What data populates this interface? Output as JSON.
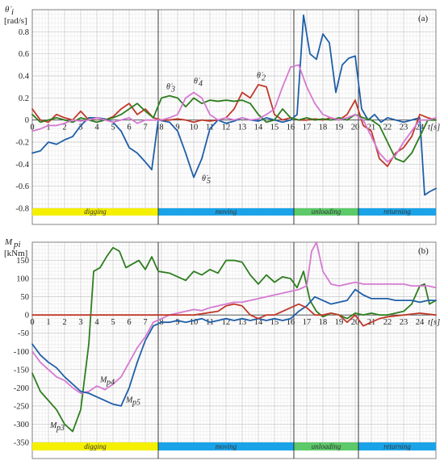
{
  "chart_data": [
    {
      "type": "line",
      "panel_label": "(a)",
      "ylabel_main": "θ̇",
      "ylabel_sub": "i",
      "ylabel_unit": "[rad/s]",
      "xlabel": "t[s]",
      "xlim": [
        0,
        25
      ],
      "ylim": [
        -0.8,
        1.0
      ],
      "x_ticks": [
        0,
        1,
        2,
        3,
        4,
        5,
        6,
        7,
        8,
        9,
        10,
        11,
        12,
        13,
        14,
        15,
        16,
        17,
        18,
        19,
        20,
        21,
        22,
        23,
        24
      ],
      "y_ticks": [
        -0.8,
        -0.6,
        -0.4,
        -0.2,
        0,
        0.2,
        0.4,
        0.6,
        0.8,
        1
      ],
      "y_tick_labels": [
        "-0.8",
        "-0.6",
        "-0.4",
        "-0.2",
        "0",
        "0.2",
        "0.4",
        "0.6",
        "0.8",
        ""
      ],
      "grid": true,
      "phases": [
        {
          "label": "digging",
          "start": 0,
          "end": 7.8,
          "color": "#f5f000"
        },
        {
          "label": "moving",
          "start": 7.8,
          "end": 16.2,
          "color": "#1aa3e8"
        },
        {
          "label": "unloading",
          "start": 16.2,
          "end": 20.2,
          "color": "#5cc96a"
        },
        {
          "label": "returning",
          "start": 20.2,
          "end": 25,
          "color": "#1aa3e8"
        }
      ],
      "annotations": [
        {
          "text": "θ̇",
          "sub": "3",
          "x": 8.3,
          "y": 0.28
        },
        {
          "text": "θ̇",
          "sub": "4",
          "x": 10.0,
          "y": 0.33
        },
        {
          "text": "θ̇",
          "sub": "2",
          "x": 13.9,
          "y": 0.38
        },
        {
          "text": "θ̇",
          "sub": "5",
          "x": 10.5,
          "y": -0.55
        }
      ],
      "series": [
        {
          "color": "#1f5fa8",
          "x": [
            0,
            0.5,
            1,
            1.5,
            2,
            2.5,
            3,
            3.5,
            4,
            4.5,
            5,
            5.5,
            6,
            6.5,
            7,
            7.4,
            7.8,
            8.5,
            9,
            9.5,
            10,
            10.5,
            11,
            11.5,
            12,
            12.5,
            13,
            13.5,
            14,
            14.5,
            15,
            15.5,
            16,
            16.4,
            16.8,
            17.2,
            17.6,
            18,
            18.4,
            18.8,
            19.2,
            19.6,
            20,
            20.4,
            20.8,
            21.2,
            21.6,
            22,
            22.5,
            23,
            23.5,
            24,
            24.3,
            24.6,
            25
          ],
          "y": [
            -0.3,
            -0.28,
            -0.2,
            -0.22,
            -0.18,
            -0.15,
            -0.05,
            0.02,
            0.02,
            0.01,
            -0.02,
            -0.1,
            -0.25,
            -0.3,
            -0.38,
            -0.45,
            0.0,
            -0.02,
            -0.1,
            -0.3,
            -0.52,
            -0.35,
            -0.08,
            0.0,
            -0.03,
            -0.01,
            0.02,
            0.0,
            -0.01,
            0.02,
            0.0,
            -0.02,
            0.0,
            0.05,
            0.95,
            0.6,
            0.55,
            0.78,
            0.7,
            0.25,
            0.5,
            0.56,
            0.58,
            0.1,
            0.0,
            0.05,
            -0.02,
            0.02,
            0.0,
            -0.02,
            0.0,
            0.02,
            -0.68,
            -0.65,
            -0.62
          ]
        },
        {
          "color": "#c0392b",
          "x": [
            0,
            0.5,
            1,
            1.5,
            2,
            2.5,
            3,
            3.5,
            4,
            4.5,
            5,
            5.5,
            6,
            6.5,
            7,
            7.5,
            8,
            8.5,
            9,
            9.5,
            10,
            10.5,
            11,
            11.5,
            12,
            12.5,
            13,
            13.5,
            14,
            14.5,
            15,
            15.5,
            16,
            16.5,
            17,
            17.5,
            18,
            18.5,
            19,
            19.5,
            20,
            20.5,
            21,
            21.5,
            22,
            22.5,
            23,
            23.5,
            24,
            24.5,
            25
          ],
          "y": [
            0.1,
            0.0,
            -0.02,
            0.05,
            0.02,
            0.0,
            0.08,
            0.0,
            0.02,
            0.0,
            0.03,
            0.1,
            0.15,
            0.05,
            0.1,
            0.02,
            0.0,
            0.0,
            0.01,
            0.0,
            -0.02,
            0.0,
            -0.01,
            0.0,
            0.02,
            0.1,
            0.25,
            0.2,
            0.32,
            0.3,
            0.05,
            0.0,
            0.02,
            0.0,
            0.0,
            0.01,
            0.0,
            0.02,
            0.0,
            0.05,
            0.18,
            -0.05,
            -0.1,
            -0.35,
            -0.42,
            -0.3,
            -0.25,
            -0.15,
            0.05,
            0.02,
            0.0
          ]
        },
        {
          "color": "#2e7d1f",
          "x": [
            0,
            0.5,
            1,
            1.5,
            2,
            2.5,
            3,
            3.5,
            4,
            4.5,
            5,
            5.5,
            6,
            6.5,
            7,
            7.5,
            8,
            8.5,
            9,
            9.5,
            10,
            10.5,
            11,
            11.5,
            12,
            12.5,
            13,
            13.5,
            14,
            14.5,
            15,
            15.5,
            16,
            16.5,
            17,
            17.5,
            18,
            18.5,
            19,
            19.5,
            20,
            20.5,
            21,
            21.5,
            22,
            22.5,
            23,
            23.5,
            24,
            24.5,
            25
          ],
          "y": [
            0.05,
            -0.02,
            0.0,
            0.02,
            0.0,
            -0.02,
            0.02,
            0.0,
            -0.02,
            0.0,
            0.02,
            0.05,
            0.1,
            0.15,
            0.08,
            0.02,
            0.2,
            0.22,
            0.2,
            0.12,
            0.2,
            0.15,
            0.18,
            0.17,
            0.18,
            0.17,
            0.18,
            0.15,
            0.05,
            -0.02,
            0.0,
            0.1,
            0.02,
            0.0,
            0.02,
            0.0,
            0.01,
            0.0,
            0.02,
            0.0,
            0.05,
            0.02,
            0.0,
            -0.05,
            -0.2,
            -0.35,
            -0.38,
            -0.3,
            -0.15,
            0.0,
            0.0
          ]
        },
        {
          "color": "#d57ad1",
          "x": [
            0,
            0.5,
            1,
            1.5,
            2,
            2.5,
            3,
            3.5,
            4,
            4.5,
            5,
            5.5,
            6,
            6.5,
            7,
            7.5,
            8,
            8.5,
            9,
            9.5,
            10,
            10.5,
            11,
            11.5,
            12,
            12.5,
            13,
            13.5,
            14,
            14.5,
            15,
            15.5,
            16,
            16.5,
            17,
            17.5,
            18,
            18.5,
            19,
            19.5,
            20,
            20.5,
            21,
            21.5,
            22,
            22.5,
            23,
            23.5,
            24,
            24.5,
            25
          ],
          "y": [
            -0.1,
            -0.08,
            -0.05,
            -0.05,
            -0.03,
            0.0,
            -0.01,
            0.0,
            0.02,
            0.0,
            -0.02,
            0.0,
            0.02,
            -0.03,
            0.0,
            0.0,
            0.0,
            0.02,
            0.05,
            0.2,
            0.25,
            0.2,
            0.05,
            0.0,
            0.02,
            0.0,
            0.02,
            0.0,
            0.01,
            0.05,
            0.1,
            0.3,
            0.48,
            0.5,
            0.3,
            0.15,
            0.05,
            0.02,
            0.0,
            0.02,
            0.05,
            0.0,
            -0.15,
            -0.3,
            -0.38,
            -0.32,
            -0.2,
            -0.1,
            0.0,
            0.0,
            0.02
          ]
        }
      ]
    },
    {
      "type": "line",
      "panel_label": "(b)",
      "ylabel_main": "M",
      "ylabel_sub": "pi",
      "ylabel_unit": "[kNm]",
      "xlabel": "t[s]",
      "xlim": [
        0,
        25
      ],
      "ylim": [
        -350,
        200
      ],
      "x_ticks": [
        0,
        1,
        2,
        3,
        4,
        5,
        6,
        7,
        8,
        9,
        10,
        11,
        12,
        13,
        14,
        15,
        16,
        17,
        18,
        19,
        20,
        21,
        22,
        23,
        24
      ],
      "y_ticks": [
        -350,
        -300,
        -250,
        -200,
        -150,
        -100,
        -50,
        0,
        50,
        100,
        150
      ],
      "y_tick_labels": [
        "-350",
        "-300",
        "-250",
        "-200",
        "-150",
        "-100",
        "-50",
        "0",
        "50",
        "100",
        "150"
      ],
      "grid": true,
      "phases": [
        {
          "label": "digging",
          "start": 0,
          "end": 7.8,
          "color": "#f5f000"
        },
        {
          "label": "moving",
          "start": 7.8,
          "end": 16.2,
          "color": "#1aa3e8"
        },
        {
          "label": "unloading",
          "start": 16.2,
          "end": 20.2,
          "color": "#5cc96a"
        },
        {
          "label": "returning",
          "start": 20.2,
          "end": 25,
          "color": "#1aa3e8"
        }
      ],
      "annotations": [
        {
          "text": "M",
          "sub": "p4",
          "x": 4.2,
          "y": -185
        },
        {
          "text": "M",
          "sub": "p5",
          "x": 5.8,
          "y": -240
        },
        {
          "text": "M",
          "sub": "p3",
          "x": 1.1,
          "y": -310
        }
      ],
      "series": [
        {
          "color": "#2e7d1f",
          "x": [
            0,
            0.5,
            1,
            1.5,
            2,
            2.5,
            3,
            3.5,
            3.8,
            4.2,
            4.6,
            5,
            5.4,
            5.8,
            6.2,
            6.6,
            7,
            7.4,
            7.8,
            8.5,
            9,
            9.5,
            10,
            10.5,
            11,
            11.5,
            12,
            12.5,
            13,
            13.5,
            14,
            14.5,
            15,
            15.5,
            16,
            16.4,
            16.8,
            17.2,
            17.6,
            18,
            18.5,
            19,
            19.5,
            20,
            20.5,
            21,
            21.5,
            22,
            22.5,
            23,
            23.5,
            24,
            24.3,
            24.6,
            25
          ],
          "y": [
            -160,
            -210,
            -235,
            -260,
            -300,
            -320,
            -260,
            -80,
            120,
            130,
            160,
            185,
            175,
            130,
            140,
            150,
            125,
            160,
            120,
            115,
            105,
            95,
            120,
            110,
            125,
            115,
            150,
            150,
            145,
            110,
            85,
            110,
            90,
            105,
            100,
            75,
            120,
            40,
            10,
            -5,
            5,
            0,
            -10,
            5,
            0,
            5,
            0,
            0,
            5,
            10,
            30,
            80,
            85,
            30,
            40
          ]
        },
        {
          "color": "#d57ad1",
          "x": [
            0,
            0.5,
            1,
            1.5,
            2,
            2.5,
            3,
            3.5,
            4,
            4.5,
            5,
            5.5,
            6,
            6.5,
            7,
            7.5,
            8,
            8.5,
            9,
            9.5,
            10,
            10.5,
            11,
            11.5,
            12,
            12.5,
            13,
            13.5,
            14,
            14.5,
            15,
            15.5,
            16,
            16.5,
            17,
            17.3,
            17.6,
            18,
            18.5,
            19,
            19.5,
            20,
            20.5,
            21,
            21.5,
            22,
            22.5,
            23,
            23.5,
            24,
            24.5,
            25
          ],
          "y": [
            -100,
            -130,
            -150,
            -170,
            -180,
            -200,
            -215,
            -210,
            -195,
            -205,
            -190,
            -170,
            -130,
            -90,
            -60,
            -20,
            -10,
            0,
            5,
            10,
            15,
            12,
            20,
            25,
            30,
            35,
            35,
            40,
            45,
            50,
            55,
            60,
            65,
            70,
            80,
            175,
            200,
            120,
            85,
            80,
            85,
            90,
            85,
            85,
            85,
            85,
            85,
            85,
            80,
            80,
            80,
            75
          ]
        },
        {
          "color": "#1f5fa8",
          "x": [
            0,
            0.5,
            1,
            1.5,
            2,
            2.5,
            3,
            3.5,
            4,
            4.5,
            5,
            5.5,
            6,
            6.5,
            7,
            7.5,
            8,
            8.5,
            9,
            9.5,
            10,
            10.5,
            11,
            11.5,
            12,
            12.5,
            13,
            13.5,
            14,
            14.5,
            15,
            15.5,
            16,
            16.5,
            17,
            17.5,
            18,
            18.5,
            19,
            19.5,
            20,
            20.5,
            21,
            21.5,
            22,
            22.5,
            23,
            23.5,
            24,
            24.5,
            25
          ],
          "y": [
            -80,
            -110,
            -130,
            -145,
            -170,
            -190,
            -210,
            -215,
            -225,
            -235,
            -245,
            -250,
            -200,
            -130,
            -70,
            -30,
            -20,
            -20,
            -15,
            -20,
            -15,
            -10,
            -20,
            -15,
            -10,
            -15,
            -10,
            -15,
            -10,
            -15,
            -10,
            -15,
            -10,
            10,
            25,
            50,
            40,
            30,
            35,
            40,
            70,
            55,
            45,
            45,
            45,
            40,
            40,
            40,
            35,
            40,
            40
          ]
        },
        {
          "color": "#c0392b",
          "x": [
            0,
            2,
            4,
            6,
            8,
            10,
            11.5,
            12,
            12.5,
            13,
            13.5,
            14,
            14.5,
            15,
            15.5,
            16,
            16.5,
            17,
            17.5,
            18,
            18.5,
            19,
            19.5,
            20,
            20.5,
            21,
            21.5,
            22,
            23,
            24,
            25
          ],
          "y": [
            0,
            0,
            0,
            0,
            0,
            0,
            10,
            25,
            30,
            25,
            0,
            -10,
            0,
            0,
            10,
            20,
            30,
            20,
            0,
            0,
            5,
            0,
            -20,
            0,
            -30,
            -20,
            -10,
            -5,
            0,
            5,
            0
          ]
        }
      ]
    }
  ]
}
